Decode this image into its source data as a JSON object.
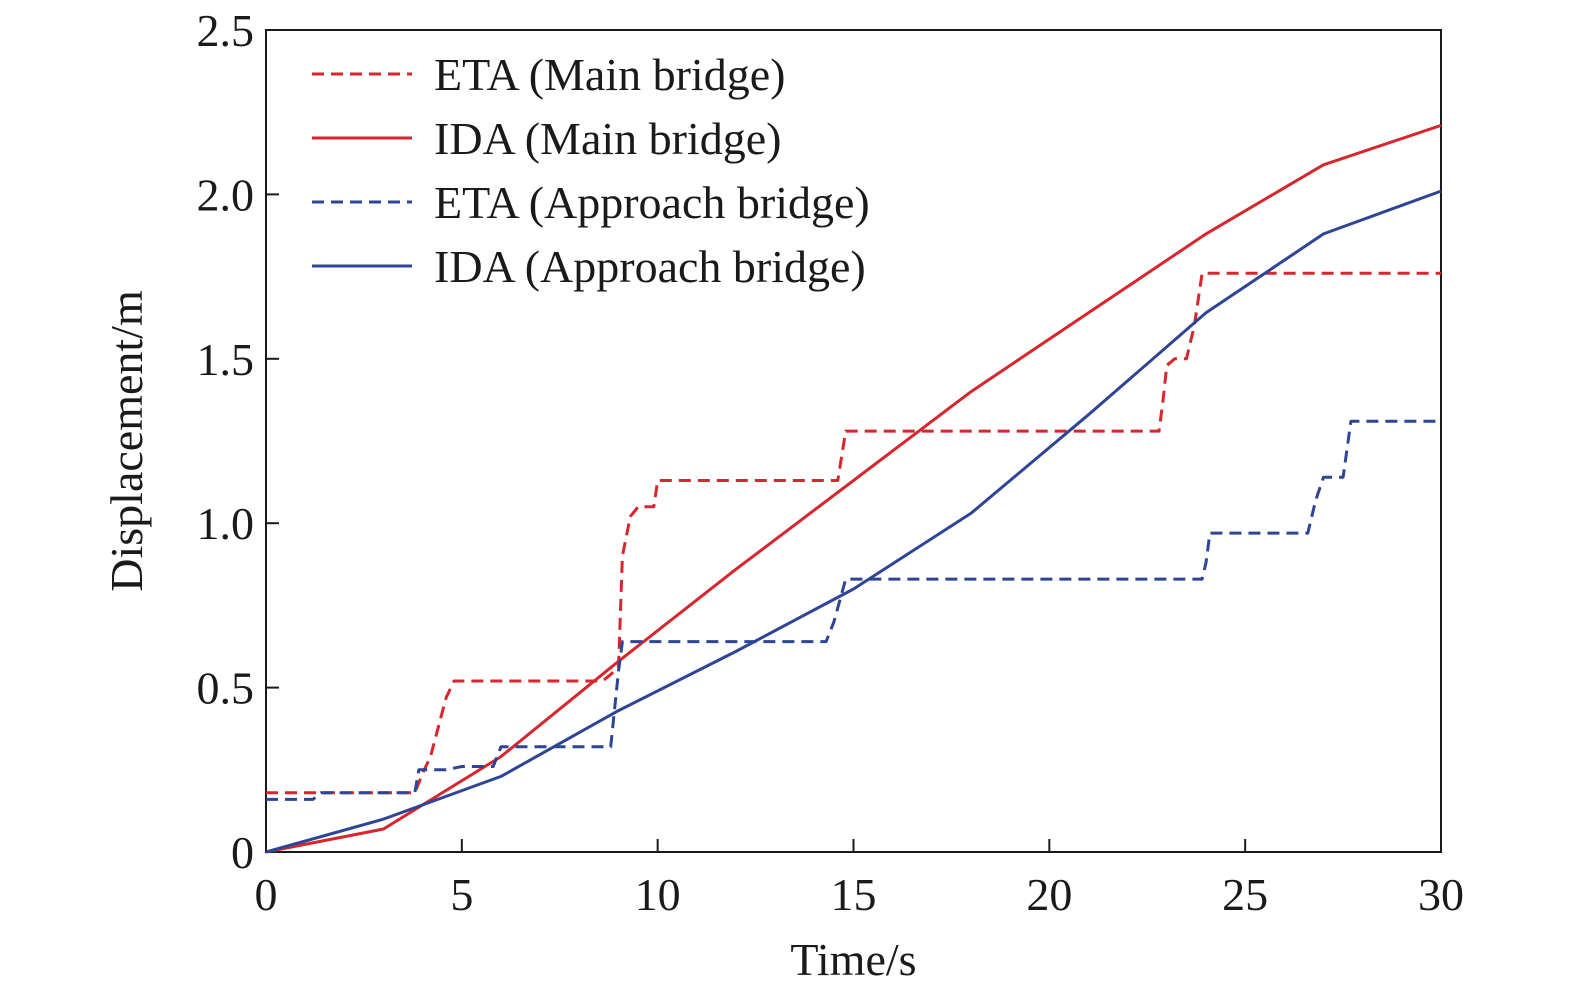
{
  "chart_data": {
    "type": "line",
    "title": "",
    "xlabel": "Time/s",
    "ylabel": "Displacement/m",
    "xlim": [
      0,
      30
    ],
    "ylim": [
      0,
      2.5
    ],
    "xticks": [
      0,
      5,
      10,
      15,
      20,
      25,
      30
    ],
    "xtick_labels": [
      "0",
      "5",
      "10",
      "15",
      "20",
      "25",
      "30"
    ],
    "yticks": [
      0,
      0.5,
      1.0,
      1.5,
      2.0,
      2.5
    ],
    "ytick_labels": [
      "0",
      "0.5",
      "1.0",
      "1.5",
      "2.0",
      "2.5"
    ],
    "grid": false,
    "legend_position": "top-left",
    "series": [
      {
        "name": "ETA (Main bridge)",
        "color": "#d7262e",
        "dash": "dashed",
        "x": [
          0,
          3.8,
          4.0,
          4.2,
          4.4,
          4.6,
          4.8,
          8.6,
          9.0,
          9.1,
          9.3,
          9.5,
          9.9,
          10.0,
          14.6,
          14.8,
          22.8,
          22.9,
          23.0,
          23.2,
          23.5,
          23.7,
          23.9,
          30
        ],
        "y": [
          0.18,
          0.18,
          0.24,
          0.29,
          0.38,
          0.47,
          0.52,
          0.52,
          0.56,
          0.9,
          1.02,
          1.05,
          1.05,
          1.13,
          1.13,
          1.28,
          1.28,
          1.37,
          1.48,
          1.5,
          1.5,
          1.6,
          1.76,
          1.76
        ]
      },
      {
        "name": "IDA (Main bridge)",
        "color": "#d7262e",
        "dash": "solid",
        "x": [
          0,
          3,
          6,
          9,
          12,
          15,
          18,
          21,
          24,
          27,
          30
        ],
        "y": [
          0,
          0.07,
          0.29,
          0.58,
          0.86,
          1.13,
          1.4,
          1.64,
          1.88,
          2.09,
          2.21
        ]
      },
      {
        "name": "ETA (Approach bridge)",
        "color": "#2e4597",
        "dash": "dashed",
        "x": [
          0,
          1.2,
          1.4,
          3.8,
          3.9,
          4.6,
          5.0,
          5.8,
          6.0,
          8.8,
          9.0,
          9.1,
          14.3,
          14.5,
          14.8,
          23.9,
          24.0,
          24.1,
          26.6,
          26.8,
          27.0,
          27.5,
          27.7,
          30
        ],
        "y": [
          0.16,
          0.16,
          0.18,
          0.18,
          0.25,
          0.25,
          0.26,
          0.26,
          0.32,
          0.32,
          0.55,
          0.64,
          0.64,
          0.7,
          0.83,
          0.83,
          0.88,
          0.97,
          0.97,
          1.07,
          1.14,
          1.14,
          1.31,
          1.31
        ]
      },
      {
        "name": "IDA (Approach bridge)",
        "color": "#2e4597",
        "dash": "solid",
        "x": [
          0,
          3,
          6,
          9,
          12,
          15,
          18,
          21,
          24,
          27,
          30
        ],
        "y": [
          0,
          0.1,
          0.23,
          0.43,
          0.61,
          0.8,
          1.03,
          1.33,
          1.64,
          1.88,
          2.01
        ]
      }
    ]
  }
}
